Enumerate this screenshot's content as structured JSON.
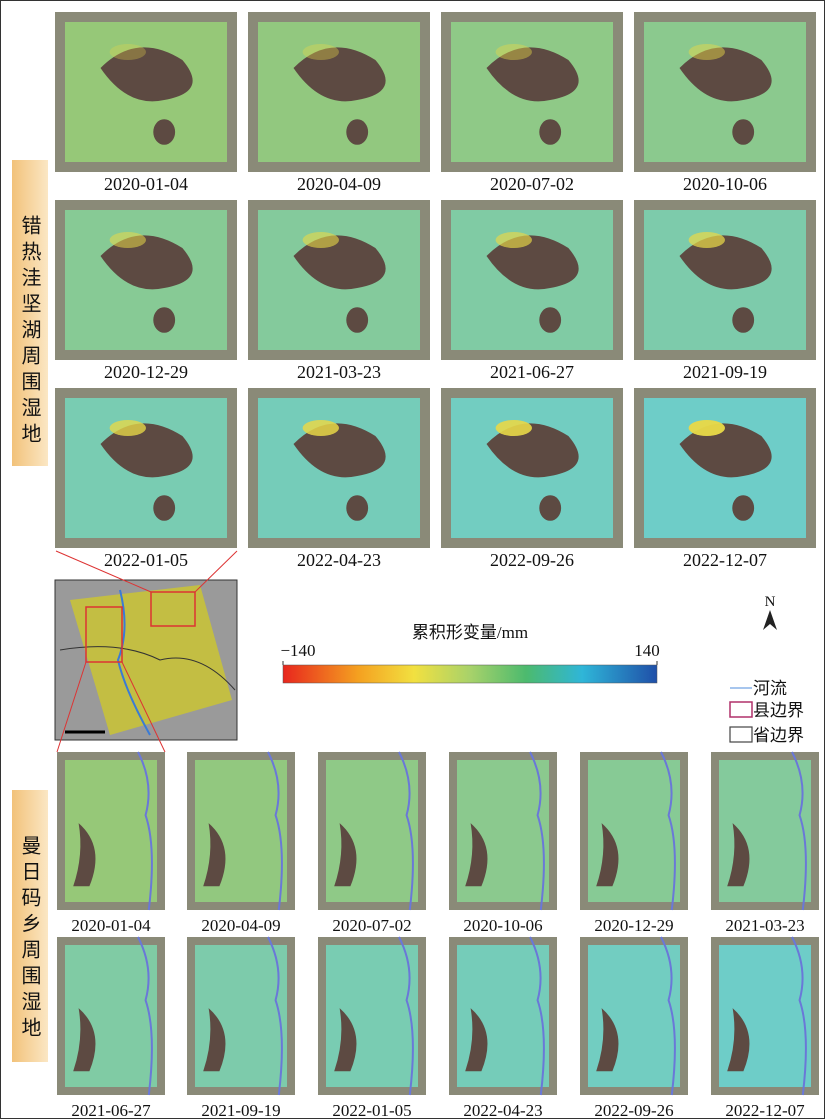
{
  "top_section": {
    "label": "错热洼坚湖周围湿地",
    "panels": [
      "2020-01-04",
      "2020-04-09",
      "2020-07-02",
      "2020-10-06",
      "2020-12-29",
      "2021-03-23",
      "2021-06-27",
      "2021-09-19",
      "2022-01-05",
      "2022-04-23",
      "2022-09-26",
      "2022-12-07"
    ]
  },
  "colorbar": {
    "title": "累积形变量/mm",
    "min": {
      "value": -140,
      "label": "−140"
    },
    "max": 140
  },
  "north": "N",
  "legend": [
    "河流",
    "县边界",
    "省边界"
  ],
  "bottom_section": {
    "label": "曼日码乡周围湿地",
    "panels": [
      "2020-01-04",
      "2020-04-09",
      "2020-07-02",
      "2020-10-06",
      "2020-12-29",
      "2021-03-23",
      "2021-06-27",
      "2021-09-19",
      "2022-01-05",
      "2022-04-23",
      "2022-09-26",
      "2022-12-07"
    ]
  }
}
